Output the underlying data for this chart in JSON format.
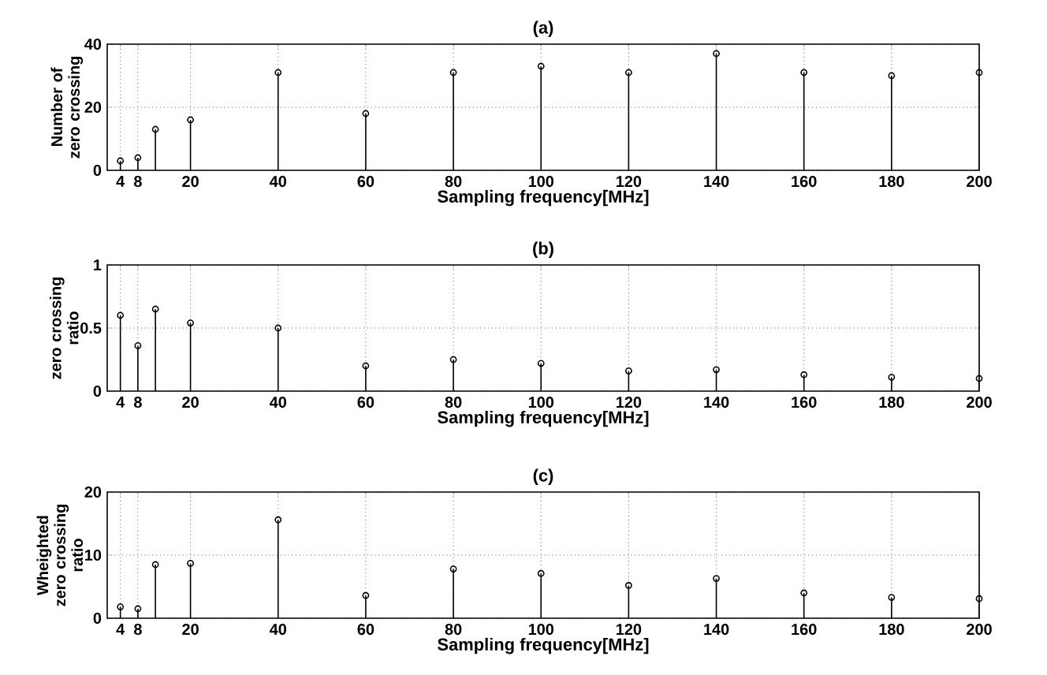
{
  "chart_data": [
    {
      "type": "lollipop",
      "title": "(a)",
      "xlabel": "Sampling frequency[MHz]",
      "ylabel": "Number of zero crossing",
      "color": "#000000",
      "marker": "circle",
      "grid": true,
      "x": [
        4,
        8,
        12,
        20,
        40,
        60,
        80,
        100,
        120,
        140,
        160,
        180,
        200
      ],
      "values": [
        3,
        4,
        13,
        16,
        31,
        18,
        31,
        33,
        31,
        37,
        31,
        30,
        31
      ],
      "xlim": [
        1,
        200
      ],
      "xticks": [
        4,
        8,
        20,
        40,
        60,
        80,
        100,
        120,
        140,
        160,
        180,
        200
      ],
      "ylim": [
        0,
        40
      ],
      "yticks": [
        0,
        20,
        40
      ]
    },
    {
      "type": "lollipop",
      "title": "(b)",
      "xlabel": "Sampling frequency[MHz]",
      "ylabel": "zero crossing ratio",
      "color": "#000000",
      "marker": "circle",
      "grid": true,
      "x": [
        4,
        8,
        12,
        20,
        40,
        60,
        80,
        100,
        120,
        140,
        160,
        180,
        200
      ],
      "values": [
        0.6,
        0.36,
        0.65,
        0.54,
        0.5,
        0.2,
        0.25,
        0.22,
        0.16,
        0.17,
        0.13,
        0.11,
        0.1
      ],
      "xlim": [
        1,
        200
      ],
      "xticks": [
        4,
        8,
        20,
        40,
        60,
        80,
        100,
        120,
        140,
        160,
        180,
        200
      ],
      "ylim": [
        0,
        1
      ],
      "yticks": [
        0,
        0.5,
        1
      ]
    },
    {
      "type": "lollipop",
      "title": "(c)",
      "xlabel": "Sampling frequency[MHz]",
      "ylabel": "Wheighted zero crossing ratio",
      "color": "#000000",
      "marker": "circle",
      "grid": true,
      "x": [
        4,
        8,
        12,
        20,
        40,
        60,
        80,
        100,
        120,
        140,
        160,
        180,
        200
      ],
      "values": [
        1.8,
        1.5,
        8.5,
        8.7,
        15.6,
        3.6,
        7.8,
        7.1,
        5.2,
        6.3,
        4.0,
        3.3,
        3.1
      ],
      "xlim": [
        1,
        200
      ],
      "xticks": [
        4,
        8,
        20,
        40,
        60,
        80,
        100,
        120,
        140,
        160,
        180,
        200
      ],
      "ylim": [
        0,
        20
      ],
      "yticks": [
        0,
        10,
        20
      ]
    }
  ]
}
